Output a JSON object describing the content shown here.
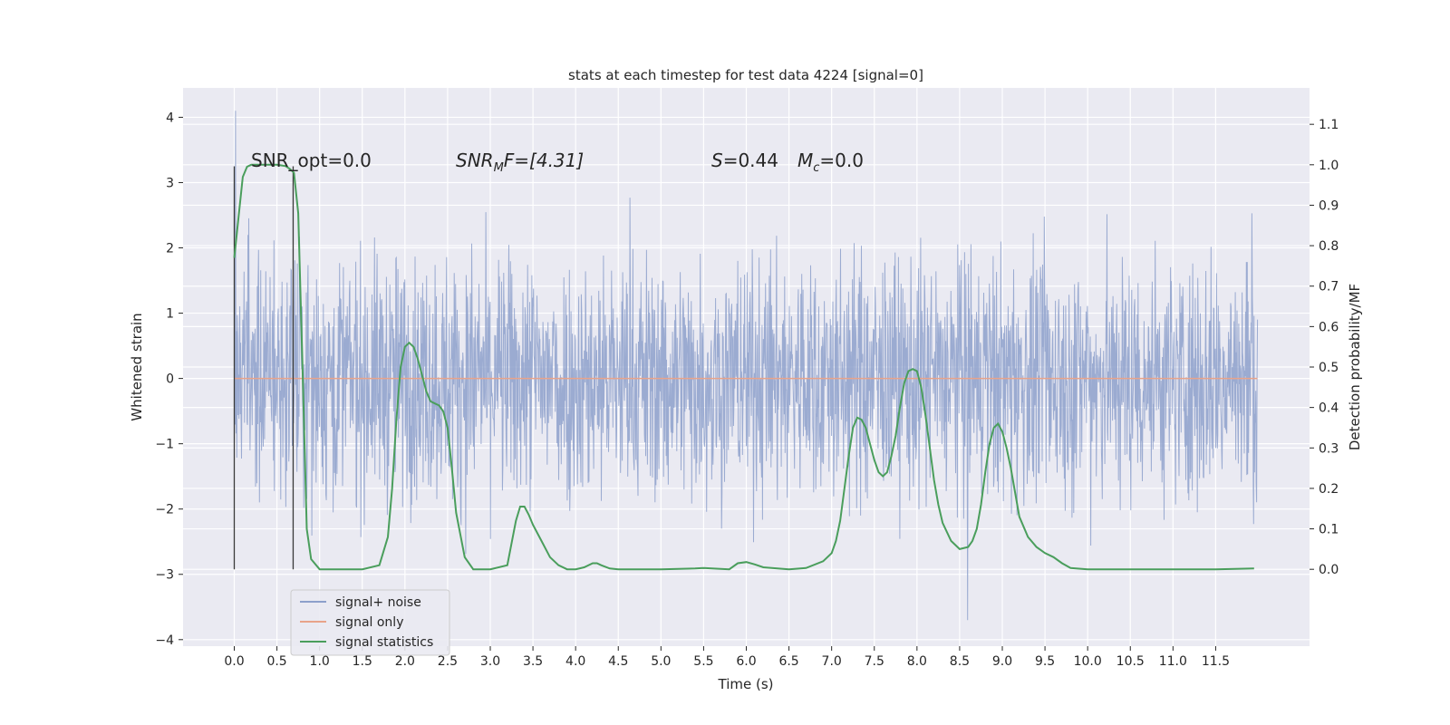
{
  "chart_data": {
    "type": "line",
    "title": "stats at each timestep for test data 4224 [signal=0]",
    "xlabel": "Time (s)",
    "ylabel_left": "Whitened strain",
    "ylabel_right": "Detection probability/MF",
    "xlim": [
      -0.6,
      12.6
    ],
    "ylim_left": [
      -4.1,
      4.45
    ],
    "ylim_right": [
      -0.19,
      1.19
    ],
    "x_ticks": [
      "0.0",
      "0.5",
      "1.0",
      "1.5",
      "2.0",
      "2.5",
      "3.0",
      "3.5",
      "4.0",
      "4.5",
      "5.0",
      "5.5",
      "6.0",
      "6.5",
      "7.0",
      "7.5",
      "8.0",
      "8.5",
      "9.0",
      "9.5",
      "10.0",
      "10.5",
      "11.0",
      "11.5"
    ],
    "y_left_ticks": [
      "4",
      "3",
      "2",
      "1",
      "0",
      "−1",
      "−2",
      "−3",
      "−4"
    ],
    "y_right_ticks": [
      "1.1",
      "1.0",
      "0.9",
      "0.8",
      "0.7",
      "0.6",
      "0.5",
      "0.4",
      "0.3",
      "0.2",
      "0.1",
      "0.0"
    ],
    "grid": true,
    "colors": {
      "background": "#eaeaf2",
      "grid": "#ffffff",
      "noise": "#8da0cb",
      "signal": "#e8a38a",
      "stats": "#4a9e5c",
      "vline": "#3a3a3a"
    },
    "annotations": {
      "snr_opt": "SNR_opt=0.0",
      "snr_mf_sym": "SNR",
      "snr_mf_sub": "M",
      "snr_mf_rest": "F=[4.31]",
      "s_sym": "S",
      "s_val": "=0.44",
      "mc_sym": "M",
      "mc_sub": "c",
      "mc_val": "=0.0"
    },
    "vertical_markers": [
      0.0,
      0.69
    ],
    "noise_envelope": {
      "x_range": [
        0.0,
        11.99
      ],
      "typical_band": [
        -1.6,
        1.7
      ],
      "max": 4.1,
      "min": -3.7
    },
    "series": [
      {
        "name": "signal+ noise",
        "axis": "left",
        "style": "dense-noise"
      },
      {
        "name": "signal only",
        "axis": "left",
        "x": [
          0.0,
          11.99
        ],
        "y": [
          0.0,
          0.0
        ]
      },
      {
        "name": "signal statistics",
        "axis": "right",
        "x": [
          0.0,
          0.05,
          0.1,
          0.15,
          0.2,
          0.3,
          0.4,
          0.5,
          0.6,
          0.65,
          0.7,
          0.75,
          0.8,
          0.85,
          0.9,
          1.0,
          1.2,
          1.5,
          1.7,
          1.8,
          1.85,
          1.9,
          1.95,
          2.0,
          2.05,
          2.1,
          2.15,
          2.2,
          2.25,
          2.3,
          2.35,
          2.4,
          2.45,
          2.5,
          2.55,
          2.6,
          2.7,
          2.8,
          3.0,
          3.2,
          3.3,
          3.35,
          3.4,
          3.45,
          3.5,
          3.6,
          3.7,
          3.8,
          3.9,
          4.0,
          4.1,
          4.2,
          4.25,
          4.3,
          4.4,
          4.5,
          5.0,
          5.4,
          5.5,
          5.6,
          5.8,
          5.9,
          6.0,
          6.1,
          6.2,
          6.5,
          6.7,
          6.9,
          7.0,
          7.05,
          7.1,
          7.15,
          7.2,
          7.25,
          7.3,
          7.35,
          7.4,
          7.45,
          7.5,
          7.55,
          7.6,
          7.65,
          7.7,
          7.75,
          7.8,
          7.85,
          7.9,
          7.95,
          8.0,
          8.05,
          8.1,
          8.15,
          8.2,
          8.25,
          8.3,
          8.4,
          8.5,
          8.6,
          8.65,
          8.7,
          8.75,
          8.8,
          8.85,
          8.9,
          8.95,
          9.0,
          9.05,
          9.1,
          9.15,
          9.2,
          9.3,
          9.4,
          9.5,
          9.6,
          9.7,
          9.8,
          10.0,
          11.0,
          11.5,
          11.95
        ],
        "y": [
          0.77,
          0.87,
          0.97,
          0.995,
          1.0,
          1.0,
          1.0,
          1.0,
          0.997,
          0.99,
          0.98,
          0.88,
          0.5,
          0.1,
          0.025,
          0.0,
          0.0,
          0.0,
          0.01,
          0.08,
          0.2,
          0.37,
          0.5,
          0.55,
          0.56,
          0.55,
          0.52,
          0.48,
          0.44,
          0.415,
          0.41,
          0.405,
          0.39,
          0.35,
          0.25,
          0.14,
          0.03,
          0.0,
          0.0,
          0.01,
          0.12,
          0.155,
          0.155,
          0.135,
          0.11,
          0.07,
          0.03,
          0.01,
          0.0,
          0.0,
          0.005,
          0.015,
          0.015,
          0.01,
          0.002,
          0.0,
          0.0,
          0.002,
          0.003,
          0.002,
          0.0,
          0.015,
          0.018,
          0.012,
          0.005,
          0.0,
          0.003,
          0.02,
          0.04,
          0.07,
          0.12,
          0.2,
          0.28,
          0.35,
          0.375,
          0.37,
          0.35,
          0.31,
          0.27,
          0.24,
          0.23,
          0.24,
          0.28,
          0.33,
          0.4,
          0.46,
          0.49,
          0.495,
          0.49,
          0.45,
          0.38,
          0.3,
          0.22,
          0.16,
          0.115,
          0.07,
          0.05,
          0.055,
          0.07,
          0.1,
          0.16,
          0.24,
          0.31,
          0.35,
          0.36,
          0.34,
          0.3,
          0.25,
          0.19,
          0.13,
          0.08,
          0.055,
          0.04,
          0.03,
          0.015,
          0.003,
          0.0,
          0.0,
          0.0,
          0.002
        ]
      }
    ],
    "legend": {
      "position": "lower-left"
    }
  }
}
